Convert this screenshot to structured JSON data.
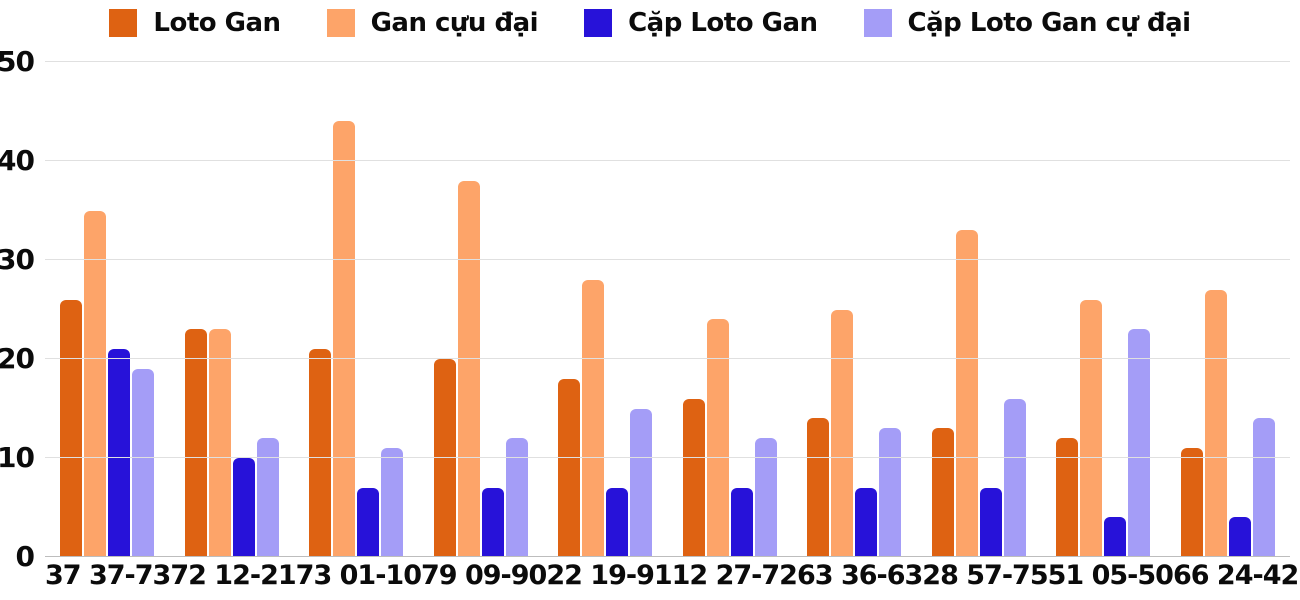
{
  "chart_data": {
    "type": "bar",
    "title": "",
    "xlabel": "",
    "ylabel": "",
    "categories": [
      "37 37-73",
      "72 12-21",
      "73 01-10",
      "79 09-90",
      "22 19-91",
      "12 27-72",
      "63 36-63",
      "28 57-75",
      "51 05-50",
      "66 24-42"
    ],
    "series": [
      {
        "name": "Loto Gan",
        "color": "#DE6212",
        "values": [
          26,
          23,
          21,
          20,
          18,
          16,
          14,
          13,
          12,
          11
        ]
      },
      {
        "name": "Gan cựu đại",
        "color": "#FDA469",
        "values": [
          35,
          23,
          44,
          38,
          28,
          24,
          25,
          33,
          26,
          27
        ]
      },
      {
        "name": "Cặp Loto Gan",
        "color": "#2712D9",
        "values": [
          21,
          10,
          7,
          7,
          7,
          7,
          7,
          7,
          4,
          4
        ]
      },
      {
        "name": "Cặp Loto Gan cự đại",
        "color": "#A49DF7",
        "values": [
          19,
          12,
          11,
          12,
          15,
          12,
          13,
          16,
          23,
          14
        ]
      }
    ],
    "ylim": [
      0,
      50
    ],
    "yticks": [
      0,
      10,
      20,
      30,
      40,
      50
    ],
    "grid": true,
    "legend_position": "top",
    "colors": {
      "background": "#ffffff",
      "gridline": "#e0e0e0",
      "axis_line": "#bdbdbd",
      "text": "#0b0b0b"
    }
  }
}
